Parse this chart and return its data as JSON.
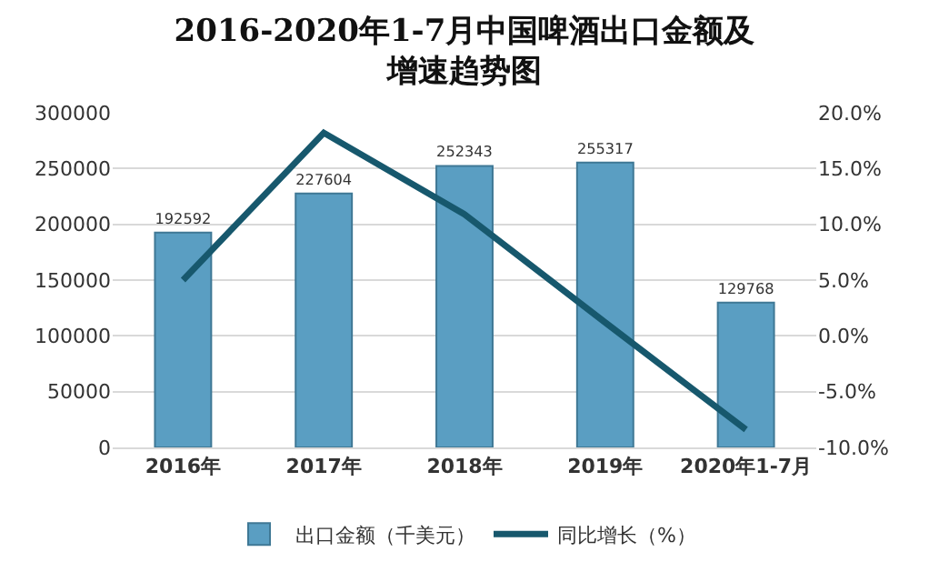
{
  "chart_data": {
    "type": "bar",
    "title": "2016-2020年1-7月中国啤酒出口金额及增速趋势图",
    "categories": [
      "2016年",
      "2017年",
      "2018年",
      "2019年",
      "2020年1-7月"
    ],
    "series": [
      {
        "name": "出口金额（千美元）",
        "color": "#5a9ec2",
        "values": [
          192592,
          227604,
          252343,
          255317,
          129768
        ],
        "value_labels": [
          "192592",
          "227604",
          "252343",
          "255317",
          "129768"
        ]
      },
      {
        "name": "同比增长（%）",
        "type": "line",
        "axis": "y2",
        "color": "#17586d",
        "values": [
          5.0,
          18.2,
          10.9,
          1.2,
          -8.4
        ]
      }
    ],
    "ylim": [
      0,
      300000
    ],
    "yticks": [
      0,
      50000,
      100000,
      150000,
      200000,
      250000,
      300000
    ],
    "y2lim": [
      -10,
      20
    ],
    "y2ticks": [
      {
        "value": -10,
        "label": "-10.0%"
      },
      {
        "value": -5,
        "label": "-5.0%"
      },
      {
        "value": 0,
        "label": "0.0%"
      },
      {
        "value": 5,
        "label": "5.0%"
      },
      {
        "value": 10,
        "label": "10.0%"
      },
      {
        "value": 15,
        "label": "15.0%"
      },
      {
        "value": 20,
        "label": "20.0%"
      }
    ],
    "grid": "y",
    "legend": "bottom",
    "marker": "none",
    "line_style": "solid"
  }
}
